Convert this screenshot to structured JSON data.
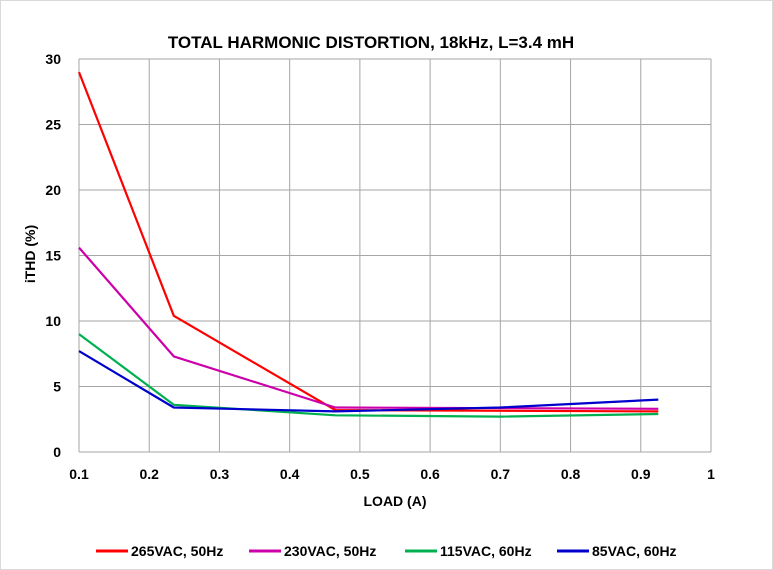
{
  "chart_data": {
    "type": "line",
    "title": "TOTAL HARMONIC DISTORTION, 18kHz, L=3.4 mH",
    "xlabel": "LOAD (A)",
    "ylabel": "iTHD (%)",
    "xlim": [
      0.1,
      1
    ],
    "ylim": [
      0,
      30
    ],
    "xticks": [
      "0.1",
      "0.2",
      "0.3",
      "0.4",
      "0.5",
      "0.6",
      "0.7",
      "0.8",
      "0.9",
      "1"
    ],
    "yticks": [
      "0",
      "5",
      "10",
      "15",
      "20",
      "25",
      "30"
    ],
    "grid": true,
    "legend_position": "bottom",
    "series": [
      {
        "name": "265VAC, 50Hz",
        "color": "#ff0000",
        "x": [
          0.1,
          0.235,
          0.465,
          0.925
        ],
        "y": [
          29.0,
          10.4,
          3.2,
          3.1
        ]
      },
      {
        "name": "230VAC, 50Hz",
        "color": "#cc00aa",
        "x": [
          0.1,
          0.235,
          0.465,
          0.925
        ],
        "y": [
          15.6,
          7.3,
          3.4,
          3.3
        ]
      },
      {
        "name": "115VAC, 60Hz",
        "color": "#00b050",
        "x": [
          0.1,
          0.235,
          0.465,
          0.7,
          0.925
        ],
        "y": [
          9.0,
          3.6,
          2.8,
          2.7,
          2.9
        ]
      },
      {
        "name": "85VAC, 60Hz",
        "color": "#0000cc",
        "x": [
          0.1,
          0.235,
          0.465,
          0.7,
          0.925
        ],
        "y": [
          7.7,
          3.4,
          3.1,
          3.4,
          4.0
        ]
      }
    ]
  }
}
